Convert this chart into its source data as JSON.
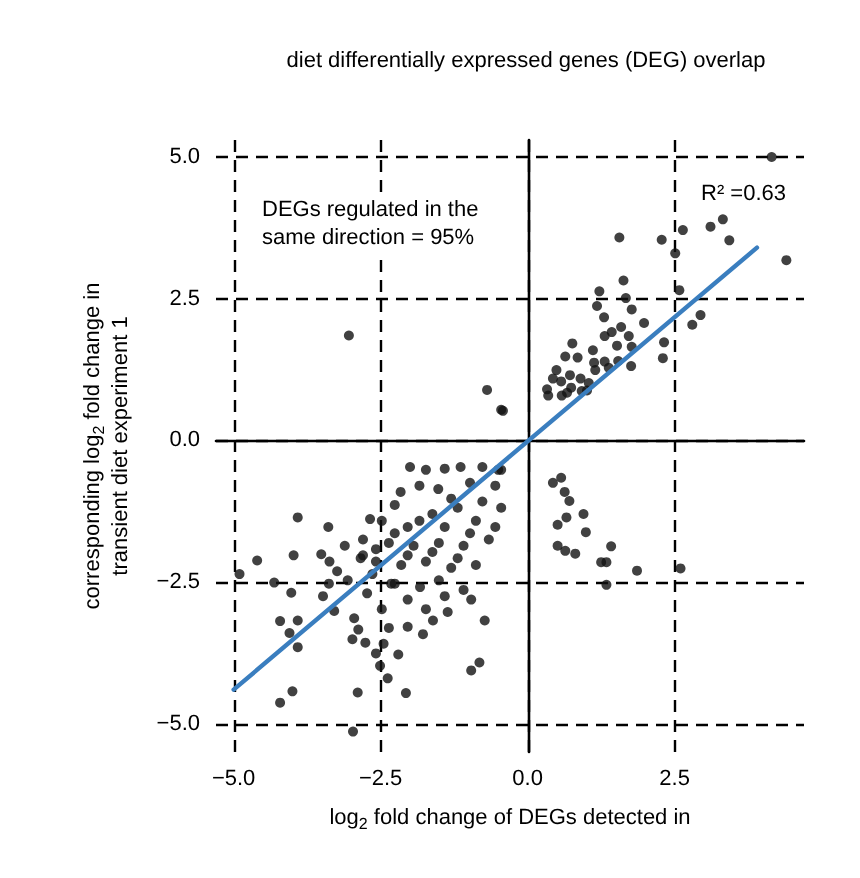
{
  "chart_data": {
    "type": "scatter",
    "title": "diet differentially expressed genes (DEG) overlap",
    "xlabel": "log$_{2}$ fold change of DEGs detected in",
    "ylabel": "corresponding log$_{2}$ fold change in\ntransient diet experiment 1",
    "xlim": [
      -5.3,
      4.7
    ],
    "ylim": [
      -5.5,
      5.3
    ],
    "xticks": [
      {
        "value": -5,
        "label": "−5.0"
      },
      -2.5,
      {
        "value": 0,
        "label": "0.0"
      },
      2.5
    ],
    "yticks": [
      {
        "value": -5,
        "label": "−5.0"
      },
      -2.5,
      {
        "value": 0,
        "label": "0.0"
      },
      2.5,
      {
        "value": 5,
        "label": "5.0"
      }
    ],
    "grid": true,
    "marker": "circle",
    "annotations": [
      "DEGs regulated in the\nsame direction = 95%",
      "R² =0.63"
    ],
    "series": [
      {
        "color": "#111111",
        "x": [
          4.15,
          4.4,
          1.56,
          2.28,
          2.64,
          3.11,
          3.32,
          3.43,
          2.51,
          2.58,
          1.63,
          1.22,
          1.18,
          1.67,
          1.77,
          1.3,
          1.98,
          1.59,
          1.31,
          1.43,
          1.72,
          0.76,
          1.52,
          1.77,
          1.11,
          2.32,
          2.94,
          2.8,
          0.64,
          0.85,
          1.31,
          1.13,
          1.54,
          2.3,
          1.76,
          0.49,
          1.15,
          1.38,
          0.72,
          0.43,
          0.9,
          0.57,
          1.04,
          0.33,
          0.74,
          0.92,
          0.35,
          0.58,
          0.67,
          1.01,
          -0.45,
          -3.04,
          -0.69,
          -0.42,
          0.43,
          0.57,
          0.63,
          0.71,
          0.66,
          0.51,
          0.95,
          0.99,
          0.51,
          0.64,
          0.81,
          1.42,
          1.25,
          1.34,
          1.86,
          1.34,
          2.6,
          -0.45,
          -3.91,
          -4.6,
          -4.9,
          -4.31,
          -3.98,
          -4.02,
          -4.21,
          -3.91,
          -4.05,
          -3.91,
          -4.21,
          -4.0,
          -2.89,
          -2.97,
          -2.07,
          -3.39,
          -3.51,
          -3.37,
          -3.48,
          -3.29,
          -2.95,
          -2.98,
          -2.76,
          -2.45,
          -2.51,
          -2.38,
          -2.2,
          -2.88,
          -2.04,
          -1.78,
          -0.96,
          -0.82,
          -0.73,
          -1.61,
          -1.36,
          -1.09,
          -0.96,
          -2.73,
          -2.68,
          -3.11,
          -2.84,
          -3.24,
          -3.38,
          -2.48,
          -3.06,
          -2.0,
          -1.73,
          -1.41,
          -1.14,
          -0.77,
          -0.5,
          -2.16,
          -2.26,
          -1.52,
          -0.98,
          -0.55,
          -2.48,
          -2.04,
          -1.62,
          -1.19,
          -0.77,
          -0.45,
          -2.8,
          -2.36,
          -1.94,
          -1.51,
          -1.09,
          -0.66,
          -2.58,
          -2.15,
          -1.73,
          -1.3,
          -0.88,
          -2.64,
          -2.26,
          -1.83,
          -1.51,
          -2.04,
          -1.73,
          -2.36,
          -2.58,
          -2.32,
          -2.8,
          -1.84,
          -1.3,
          -0.88,
          -1.41,
          -1.84,
          -2.26,
          -0.55,
          -0.98,
          -1.62,
          -2.04,
          -2.58,
          -1.19,
          -1.41
        ],
        "values": [
          5.0,
          3.18,
          3.58,
          3.54,
          3.71,
          3.77,
          3.9,
          3.53,
          3.3,
          2.65,
          2.82,
          2.63,
          2.37,
          2.51,
          2.31,
          2.17,
          2.07,
          2.0,
          1.84,
          1.91,
          1.84,
          1.71,
          1.67,
          1.65,
          1.59,
          1.73,
          2.21,
          2.04,
          1.48,
          1.46,
          1.39,
          1.37,
          1.4,
          1.45,
          1.31,
          1.24,
          1.24,
          1.28,
          1.15,
          1.09,
          1.09,
          1.04,
          1.01,
          0.9,
          0.93,
          0.87,
          0.79,
          0.79,
          0.84,
          0.88,
          0.54,
          1.85,
          0.89,
          0.52,
          -0.75,
          -0.66,
          -0.91,
          -1.07,
          -1.36,
          -1.49,
          -1.3,
          -1.62,
          -1.86,
          -1.95,
          -2.0,
          -1.87,
          -2.15,
          -2.15,
          -2.3,
          -2.55,
          -2.26,
          -0.52,
          -1.36,
          -2.12,
          -2.36,
          -2.51,
          -2.03,
          -2.69,
          -3.19,
          -3.18,
          -3.4,
          -3.65,
          -4.63,
          -4.43,
          -4.45,
          -5.14,
          -4.46,
          -1.53,
          -2.01,
          -2.14,
          -2.75,
          -3.01,
          -3.14,
          -3.51,
          -3.57,
          -3.59,
          -3.98,
          -4.2,
          -3.78,
          -3.34,
          -3.29,
          -3.42,
          -4.06,
          -3.92,
          -3.18,
          -3.18,
          -3.03,
          -2.64,
          -2.81,
          -2.7,
          -1.39,
          -1.86,
          -2.08,
          -2.31,
          -2.53,
          -2.98,
          -2.47,
          -0.47,
          -0.52,
          -0.5,
          -0.47,
          -0.47,
          -0.52,
          -0.91,
          -1.14,
          -0.86,
          -0.75,
          -0.8,
          -1.42,
          -1.53,
          -1.3,
          -1.19,
          -1.08,
          -1.19,
          -1.75,
          -1.81,
          -1.86,
          -1.81,
          -1.86,
          -1.75,
          -2.14,
          -2.2,
          -2.14,
          -2.25,
          -2.2,
          -2.36,
          -2.53,
          -2.59,
          -2.47,
          -2.81,
          -2.98,
          -3.31,
          -3.76,
          -2.53,
          -2.03,
          -0.8,
          -1.03,
          -1.42,
          -1.53,
          -1.42,
          -1.64,
          -1.53,
          -1.64,
          -1.97,
          -2.03,
          -1.92,
          -2.08,
          -2.75
        ]
      },
      {
        "type": "line",
        "color": "#3a7ebf",
        "x": [
          -5.0,
          3.9
        ],
        "values": [
          -4.4,
          3.4
        ],
        "marker": "none"
      }
    ]
  }
}
